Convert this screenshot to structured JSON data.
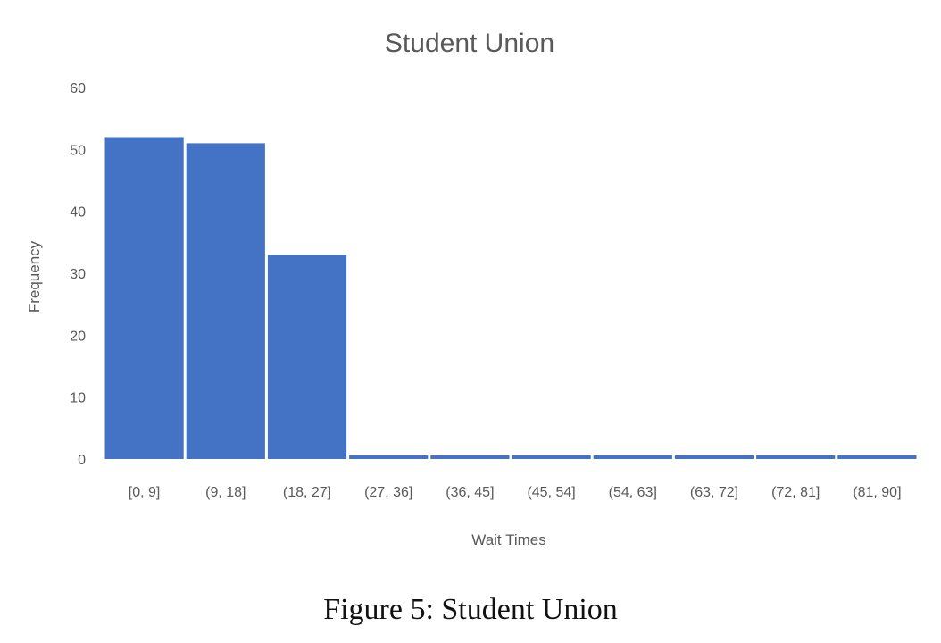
{
  "chart_data": {
    "type": "bar",
    "title": "Student Union",
    "xlabel": "Wait Times",
    "ylabel": "Frequency",
    "categories": [
      "[0, 9]",
      "(9, 18]",
      "(18, 27]",
      "(27, 36]",
      "(36, 45]",
      "(45, 54]",
      "(54, 63]",
      "(63, 72]",
      "(72, 81]",
      "(81, 90]"
    ],
    "values": [
      52,
      51,
      33,
      0,
      0,
      0,
      0,
      0,
      0,
      0
    ],
    "ylim": [
      0,
      60
    ],
    "yticks": [
      0,
      10,
      20,
      30,
      40,
      50,
      60
    ],
    "grid": false,
    "colors": {
      "bar": "#4472c4",
      "text": "#595959"
    }
  },
  "caption": "Figure 5: Student Union"
}
